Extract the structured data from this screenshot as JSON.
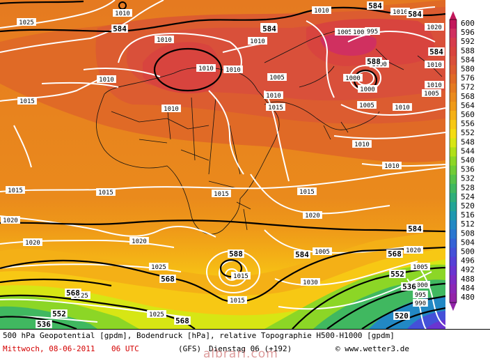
{
  "footer": {
    "title": "500 hPa Geopotential [gpdm], Bodendruck [hPa], relative Topographie H500-H1000 [gpdm]",
    "date": "Mittwoch, 08-06-2011",
    "time": "06 UTC",
    "model": "(GFS)",
    "run": "Dienstag 06 (+192)",
    "site": "© www.wetter3.de",
    "watermark": "albrari.com"
  },
  "legend": {
    "values": [
      "600",
      "596",
      "592",
      "588",
      "584",
      "580",
      "576",
      "572",
      "568",
      "564",
      "560",
      "556",
      "552",
      "548",
      "544",
      "540",
      "536",
      "532",
      "528",
      "524",
      "520",
      "516",
      "512",
      "508",
      "504",
      "500",
      "496",
      "492",
      "488",
      "484",
      "480"
    ],
    "colors": [
      "#c2185b",
      "#d03060",
      "#d63c4c",
      "#d8443e",
      "#d9503a",
      "#dc5c30",
      "#e06a26",
      "#e57a20",
      "#ea8a1c",
      "#ef9a18",
      "#f4b016",
      "#f7c814",
      "#f4dc12",
      "#d7e614",
      "#b0e018",
      "#8cd626",
      "#70cc36",
      "#56c24a",
      "#40b860",
      "#2eae7a",
      "#22a496",
      "#1e98b0",
      "#2288c4",
      "#2a76d0",
      "#3462d6",
      "#4450d8",
      "#5640d6",
      "#6a34d0",
      "#7c2cc4",
      "#8a28b6",
      "#9224a8"
    ]
  },
  "map_labels": {
    "geopotential": [
      {
        "text": "584",
        "kind": "gp"
      },
      {
        "text": "584",
        "kind": "gp"
      },
      {
        "text": "588",
        "kind": "gp"
      },
      {
        "text": "584",
        "kind": "gp"
      },
      {
        "text": "584",
        "kind": "gp"
      },
      {
        "text": "584",
        "kind": "gp"
      },
      {
        "text": "584",
        "kind": "gp"
      },
      {
        "text": "584",
        "kind": "gp"
      },
      {
        "text": "588",
        "kind": "gp"
      },
      {
        "text": "584",
        "kind": "gp"
      },
      {
        "text": "584",
        "kind": "gp"
      },
      {
        "text": "568",
        "kind": "gp"
      },
      {
        "text": "568",
        "kind": "gp"
      },
      {
        "text": "552",
        "kind": "gp"
      },
      {
        "text": "536",
        "kind": "gp"
      },
      {
        "text": "568",
        "kind": "gp"
      },
      {
        "text": "552",
        "kind": "gp"
      },
      {
        "text": "536",
        "kind": "gp"
      },
      {
        "text": "520",
        "kind": "gp"
      },
      {
        "text": "568",
        "kind": "gp"
      }
    ],
    "pressure": [
      "1010",
      "1025",
      "1010",
      "1010",
      "1010",
      "1010",
      "1010",
      "1015",
      "1010",
      "1010",
      "1005",
      "1005",
      "1005",
      "995",
      "1000",
      "1000",
      "1000",
      "1005",
      "1010",
      "1010",
      "1010",
      "1010",
      "1005",
      "1015",
      "1015",
      "1015",
      "1015",
      "1015",
      "1020",
      "1020",
      "1020",
      "1020",
      "1025",
      "1025",
      "1030",
      "1005",
      "1000",
      "995",
      "990",
      "1015",
      "1025",
      "1020",
      "1015",
      "1010",
      "1010",
      "1010",
      "1005",
      "1020"
    ]
  }
}
